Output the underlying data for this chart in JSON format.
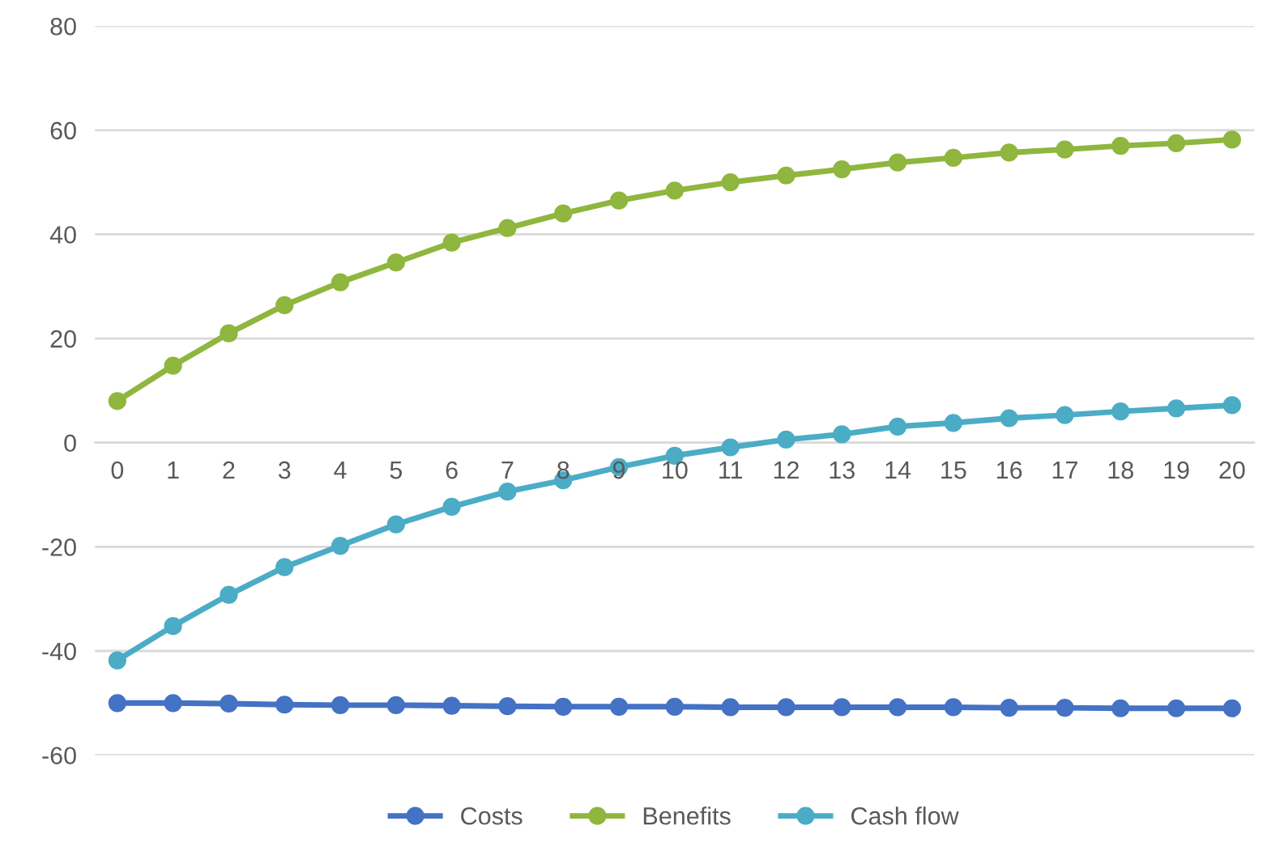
{
  "chart_data": {
    "type": "line",
    "x": [
      0,
      1,
      2,
      3,
      4,
      5,
      6,
      7,
      8,
      9,
      10,
      11,
      12,
      13,
      14,
      15,
      16,
      17,
      18,
      19,
      20
    ],
    "xlim": [
      -0.4,
      20.4
    ],
    "xticks": [
      0,
      1,
      2,
      3,
      4,
      5,
      6,
      7,
      8,
      9,
      10,
      11,
      12,
      13,
      14,
      15,
      16,
      17,
      18,
      19,
      20
    ],
    "ylim": [
      -60,
      80
    ],
    "yticks": [
      -60,
      -40,
      -20,
      0,
      20,
      40,
      60,
      80
    ],
    "grid": "y",
    "legend": "bottom",
    "marker": "circle",
    "line_style": "solid",
    "series": [
      {
        "name": "Costs",
        "color": "#4472c4",
        "values": [
          -50,
          -50,
          -50.1,
          -50.3,
          -50.4,
          -50.4,
          -50.5,
          -50.6,
          -50.7,
          -50.7,
          -50.7,
          -50.8,
          -50.8,
          -50.8,
          -50.8,
          -50.8,
          -50.9,
          -50.9,
          -51,
          -51,
          -51
        ]
      },
      {
        "name": "Benefits",
        "color": "#8fb63e",
        "values": [
          8,
          14.8,
          21,
          26.4,
          30.8,
          34.6,
          38.4,
          41.2,
          44,
          46.5,
          48.4,
          50,
          51.3,
          52.5,
          53.8,
          54.7,
          55.7,
          56.3,
          57,
          57.5,
          58.2
        ]
      },
      {
        "name": "Cash flow",
        "color": "#4bacc6",
        "values": [
          -41.8,
          -35.2,
          -29.2,
          -23.9,
          -19.8,
          -15.7,
          -12.3,
          -9.4,
          -7.2,
          -4.7,
          -2.5,
          -0.9,
          0.6,
          1.6,
          3.1,
          3.8,
          4.7,
          5.3,
          6,
          6.6,
          7.2
        ]
      }
    ]
  }
}
